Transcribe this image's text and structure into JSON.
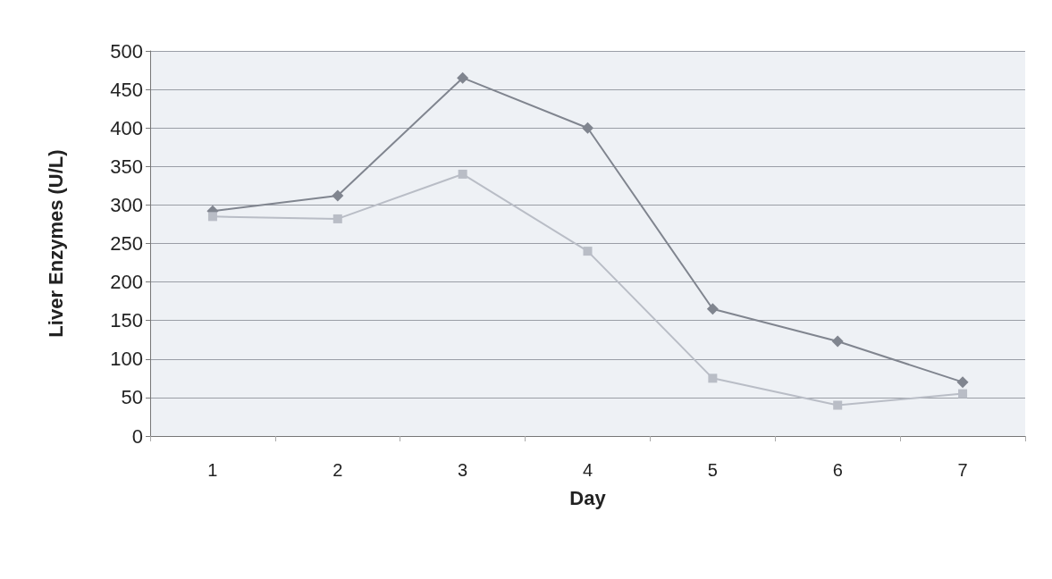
{
  "chart_data": {
    "type": "line",
    "xlabel": "Day",
    "ylabel": "Liver Enzymes (U/L)",
    "categories": [
      "1",
      "2",
      "3",
      "4",
      "5",
      "6",
      "7"
    ],
    "series": [
      {
        "color": "#80858f",
        "marker": "diamond",
        "values": [
          292,
          312,
          465,
          400,
          165,
          123,
          70
        ]
      },
      {
        "color": "#b9bdc6",
        "marker": "square",
        "values": [
          285,
          282,
          340,
          240,
          75,
          40,
          55
        ]
      }
    ],
    "ylim": [
      0,
      500
    ],
    "yticks": [
      0,
      50,
      100,
      150,
      200,
      250,
      300,
      350,
      400,
      450,
      500
    ],
    "grid": "y",
    "line_style": "solid"
  }
}
